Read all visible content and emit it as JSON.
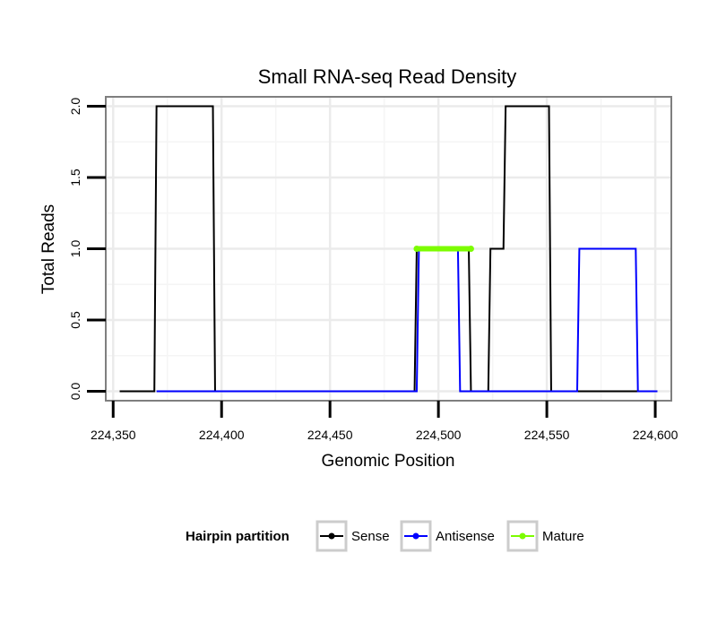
{
  "chart_data": {
    "type": "line",
    "title": "Small RNA-seq Read Density",
    "xlabel": "Genomic Position",
    "ylabel": "Total Reads",
    "xlim": [
      224347,
      224607
    ],
    "ylim": [
      -0.06,
      2.06
    ],
    "x_ticks": [
      224350,
      224400,
      224450,
      224500,
      224550,
      224600
    ],
    "x_tick_labels": [
      "224,350",
      "224,400",
      "224,450",
      "224,500",
      "224,550",
      "224,600"
    ],
    "y_ticks": [
      0,
      0.5,
      1,
      1.5,
      2
    ],
    "y_tick_labels": [
      "0.0",
      "0.5",
      "1.0",
      "1.5",
      "2.0"
    ],
    "grid": true,
    "legend": {
      "title": "Hairpin partition",
      "position": "bottom",
      "entries": [
        "Sense",
        "Antisense",
        "Mature"
      ]
    },
    "series": [
      {
        "name": "Sense",
        "color": "#000000",
        "x": [
          224353,
          224369,
          224370,
          224396,
          224397,
          224489,
          224490,
          224514,
          224515,
          224523,
          224524,
          224530,
          224531,
          224551,
          224552,
          224601
        ],
        "y": [
          0,
          0,
          2,
          2,
          0,
          0,
          1,
          1,
          0,
          0,
          1,
          1,
          2,
          2,
          0,
          0
        ]
      },
      {
        "name": "Antisense",
        "color": "#0000ff",
        "x": [
          224370,
          224396,
          224397,
          224490,
          224491,
          224509,
          224510,
          224564,
          224565,
          224591,
          224592,
          224601
        ],
        "y": [
          0,
          0,
          0,
          0,
          1,
          1,
          0,
          0,
          1,
          1,
          0,
          0
        ]
      },
      {
        "name": "Mature",
        "color": "#7cfc00",
        "x": [
          224490,
          224515
        ],
        "y": [
          1,
          1
        ]
      }
    ]
  }
}
